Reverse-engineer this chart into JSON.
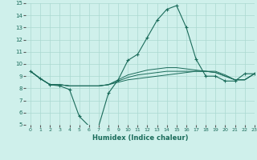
{
  "title": "",
  "xlabel": "Humidex (Indice chaleur)",
  "xlim": [
    -0.5,
    23
  ],
  "ylim": [
    5,
    15
  ],
  "xticks": [
    0,
    1,
    2,
    3,
    4,
    5,
    6,
    7,
    8,
    9,
    10,
    11,
    12,
    13,
    14,
    15,
    16,
    17,
    18,
    19,
    20,
    21,
    22,
    23
  ],
  "yticks": [
    5,
    6,
    7,
    8,
    9,
    10,
    11,
    12,
    13,
    14,
    15
  ],
  "bg_color": "#cff0eb",
  "grid_color": "#aad8d0",
  "line_color": "#1a6b5a",
  "series": [
    [
      9.4,
      8.8,
      8.3,
      8.2,
      7.9,
      5.7,
      4.9,
      4.9,
      7.6,
      8.7,
      10.3,
      10.8,
      12.2,
      13.6,
      14.5,
      14.8,
      13.0,
      10.4,
      9.0,
      9.0,
      8.6,
      8.6,
      9.2,
      9.2
    ],
    [
      9.4,
      8.8,
      8.3,
      8.3,
      8.2,
      8.2,
      8.2,
      8.2,
      8.3,
      8.5,
      8.7,
      8.8,
      8.9,
      9.0,
      9.1,
      9.2,
      9.3,
      9.4,
      9.4,
      9.4,
      9.1,
      8.7,
      8.7,
      9.2
    ],
    [
      9.4,
      8.8,
      8.3,
      8.3,
      8.2,
      8.2,
      8.2,
      8.2,
      8.3,
      8.6,
      8.9,
      9.1,
      9.2,
      9.3,
      9.4,
      9.4,
      9.4,
      9.4,
      9.4,
      9.3,
      9.0,
      8.7,
      8.7,
      9.2
    ],
    [
      9.4,
      8.8,
      8.3,
      8.3,
      8.2,
      8.2,
      8.2,
      8.2,
      8.3,
      8.7,
      9.1,
      9.3,
      9.5,
      9.6,
      9.7,
      9.7,
      9.6,
      9.5,
      9.4,
      9.3,
      9.0,
      8.7,
      8.7,
      9.2
    ]
  ]
}
